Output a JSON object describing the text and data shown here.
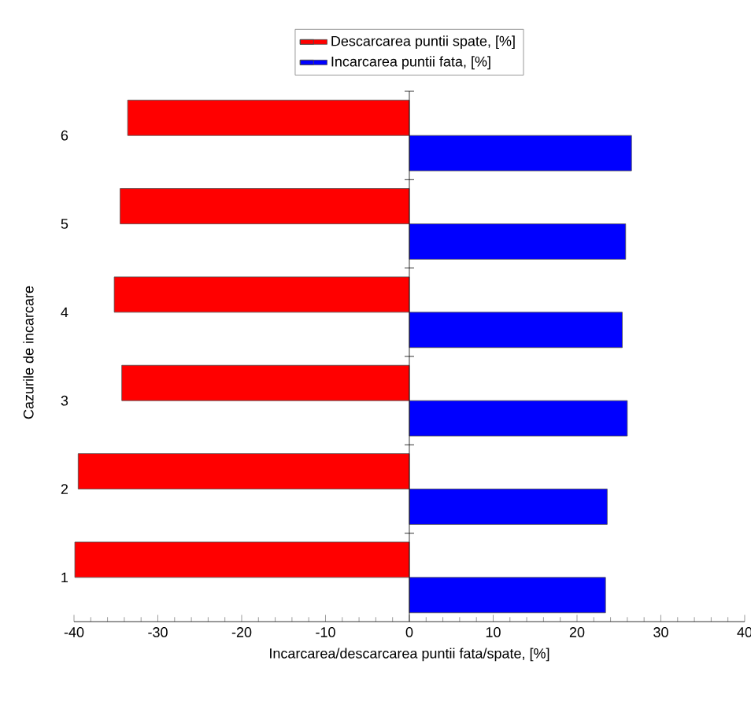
{
  "chart_data": {
    "type": "bar",
    "orientation": "horizontal",
    "xlabel": "Incarcarea/descarcarea puntii fata/spate, [%]",
    "ylabel": "Cazurile de incarcare",
    "categories": [
      "6",
      "5",
      "4",
      "3",
      "2",
      "1"
    ],
    "series": [
      {
        "name": "Descarcarea puntii spate, [%]",
        "color": "#ff0000",
        "values": [
          -33.6,
          -34.5,
          -35.2,
          -34.3,
          -39.5,
          -39.9
        ]
      },
      {
        "name": "Incarcarea puntii fata, [%]",
        "color": "#0000ff",
        "values": [
          26.5,
          25.8,
          25.4,
          26.0,
          23.6,
          23.4
        ]
      }
    ],
    "xlim": [
      -40,
      40
    ],
    "xticks": [
      -40,
      -30,
      -20,
      -10,
      0,
      10,
      20,
      30,
      40
    ],
    "legend": "top"
  }
}
